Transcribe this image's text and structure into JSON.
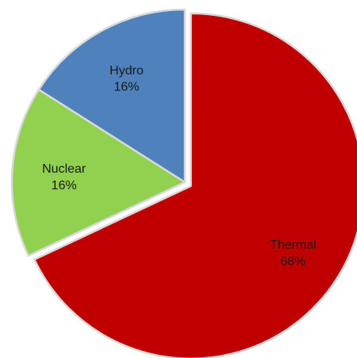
{
  "chart_data": {
    "type": "pie",
    "slices": [
      {
        "label": "Thermal",
        "pct_label": "68%",
        "value": 68,
        "color": "#c00000"
      },
      {
        "label": "Nuclear",
        "pct_label": "16%",
        "value": 16,
        "color": "#92d050"
      },
      {
        "label": "Hydro",
        "pct_label": "16%",
        "value": 16,
        "color": "#4f81bd"
      }
    ],
    "start_angle_deg": 0,
    "direction": "clockwise",
    "exploded": [
      "Thermal"
    ],
    "legend": "none"
  }
}
